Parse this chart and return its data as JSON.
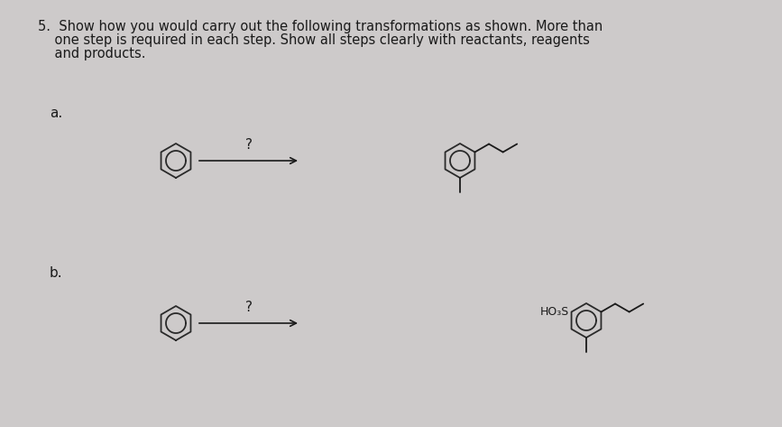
{
  "bg_color": "#cdcaca",
  "text_color": "#1a1a1a",
  "title_line1": "5.  Show how you would carry out the following transformations as shown. More than",
  "title_line2": "    one step is required in each step. Show all steps clearly with reactants, reagents",
  "title_line3": "    and products.",
  "label_a": "a.",
  "label_b": "b.",
  "question_mark": "?",
  "ho3s_label": "HO₃S",
  "font_size_title": 10.5,
  "font_size_label": 11,
  "font_size_q": 11
}
